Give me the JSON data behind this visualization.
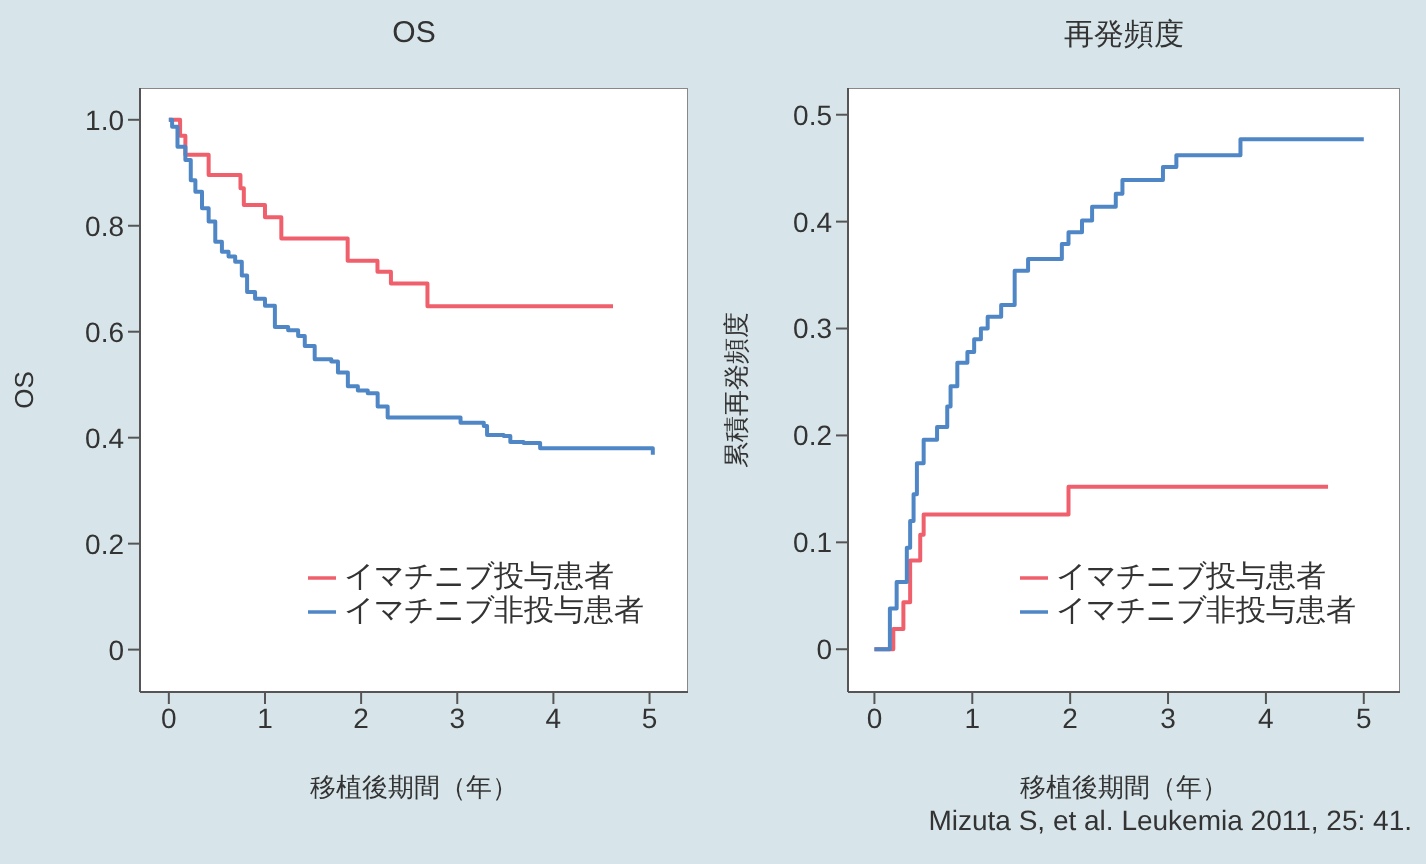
{
  "chart_data": [
    {
      "type": "step",
      "title": "OS",
      "xlabel": "移植後期間（年）",
      "ylabel": "OS",
      "xlim": [
        -0.3,
        5.4
      ],
      "xticks": [
        0,
        1,
        2,
        3,
        4,
        5
      ],
      "ylim": [
        -0.08,
        1.06
      ],
      "yticks": [
        {
          "value": 0,
          "label": "0"
        },
        0.2,
        0.4,
        0.6,
        0.8,
        {
          "value": 1,
          "label": "1.0"
        }
      ],
      "legend": "bottom right",
      "grid": false,
      "series": [
        {
          "name": "イマチニブ投与患者",
          "color": "#f0606c",
          "x": [
            0,
            0.117,
            0.172,
            0.414,
            0.745,
            0.78,
            1.0,
            1.17,
            1.86,
            2.17,
            2.31,
            2.69,
            4.62
          ],
          "values": [
            1.0,
            0.97,
            0.934,
            0.896,
            0.871,
            0.839,
            0.816,
            0.776,
            0.734,
            0.713,
            0.691,
            0.648,
            0.648
          ]
        },
        {
          "name": "イマチニブ非投与患者",
          "color": "#4f86c6",
          "x": [
            0,
            0.034,
            0.09,
            0.138,
            0.172,
            0.228,
            0.276,
            0.345,
            0.414,
            0.483,
            0.552,
            0.621,
            0.69,
            0.759,
            0.814,
            0.897,
            1.0,
            1.103,
            1.241,
            1.345,
            1.414,
            1.517,
            1.69,
            1.759,
            1.862,
            1.966,
            2.069,
            2.172,
            2.276,
            3.0,
            3.034,
            3.276,
            3.31,
            3.483,
            3.552,
            3.69,
            3.862,
            5.0,
            5.034
          ],
          "values": [
            1.0,
            0.987,
            0.949,
            0.949,
            0.924,
            0.886,
            0.864,
            0.833,
            0.808,
            0.77,
            0.751,
            0.742,
            0.732,
            0.706,
            0.675,
            0.662,
            0.649,
            0.609,
            0.603,
            0.592,
            0.573,
            0.548,
            0.544,
            0.523,
            0.497,
            0.489,
            0.484,
            0.459,
            0.438,
            0.438,
            0.428,
            0.422,
            0.405,
            0.403,
            0.392,
            0.39,
            0.38,
            0.38,
            0.368
          ]
        }
      ]
    },
    {
      "type": "step",
      "title": "再発頻度",
      "xlabel": "移植後期間（年）",
      "ylabel": "累積再発頻度",
      "xlim": [
        -0.27,
        5.37
      ],
      "xticks": [
        0,
        1,
        2,
        3,
        4,
        5
      ],
      "ylim": [
        -0.04,
        0.525
      ],
      "yticks": [
        0,
        0.1,
        0.2,
        0.3,
        0.4,
        0.5
      ],
      "legend": "bottom right",
      "grid": false,
      "annotations": [
        "Mizuta S, et al. Leukemia 2011, 25: 41."
      ],
      "series": [
        {
          "name": "イマチニブ投与患者",
          "color": "#f0606c",
          "x": [
            0,
            0.193,
            0.296,
            0.365,
            0.468,
            0.503,
            1.983,
            4.635
          ],
          "values": [
            0,
            0.019,
            0.044,
            0.083,
            0.107,
            0.126,
            0.152,
            0.152
          ]
        },
        {
          "name": "イマチニブ非投与患者",
          "color": "#4f86c6",
          "x": [
            0,
            0.11,
            0.158,
            0.227,
            0.331,
            0.365,
            0.4,
            0.434,
            0.503,
            0.64,
            0.744,
            0.778,
            0.847,
            0.95,
            1.019,
            1.088,
            1.157,
            1.295,
            1.433,
            1.57,
            1.915,
            1.983,
            2.121,
            2.224,
            2.466,
            2.534,
            2.948,
            3.085,
            3.74,
            5.0
          ],
          "values": [
            0,
            0,
            0.038,
            0.063,
            0.095,
            0.12,
            0.145,
            0.174,
            0.196,
            0.208,
            0.227,
            0.246,
            0.268,
            0.278,
            0.29,
            0.3,
            0.311,
            0.322,
            0.354,
            0.365,
            0.379,
            0.39,
            0.401,
            0.414,
            0.426,
            0.439,
            0.451,
            0.462,
            0.477,
            0.477
          ]
        }
      ]
    }
  ]
}
